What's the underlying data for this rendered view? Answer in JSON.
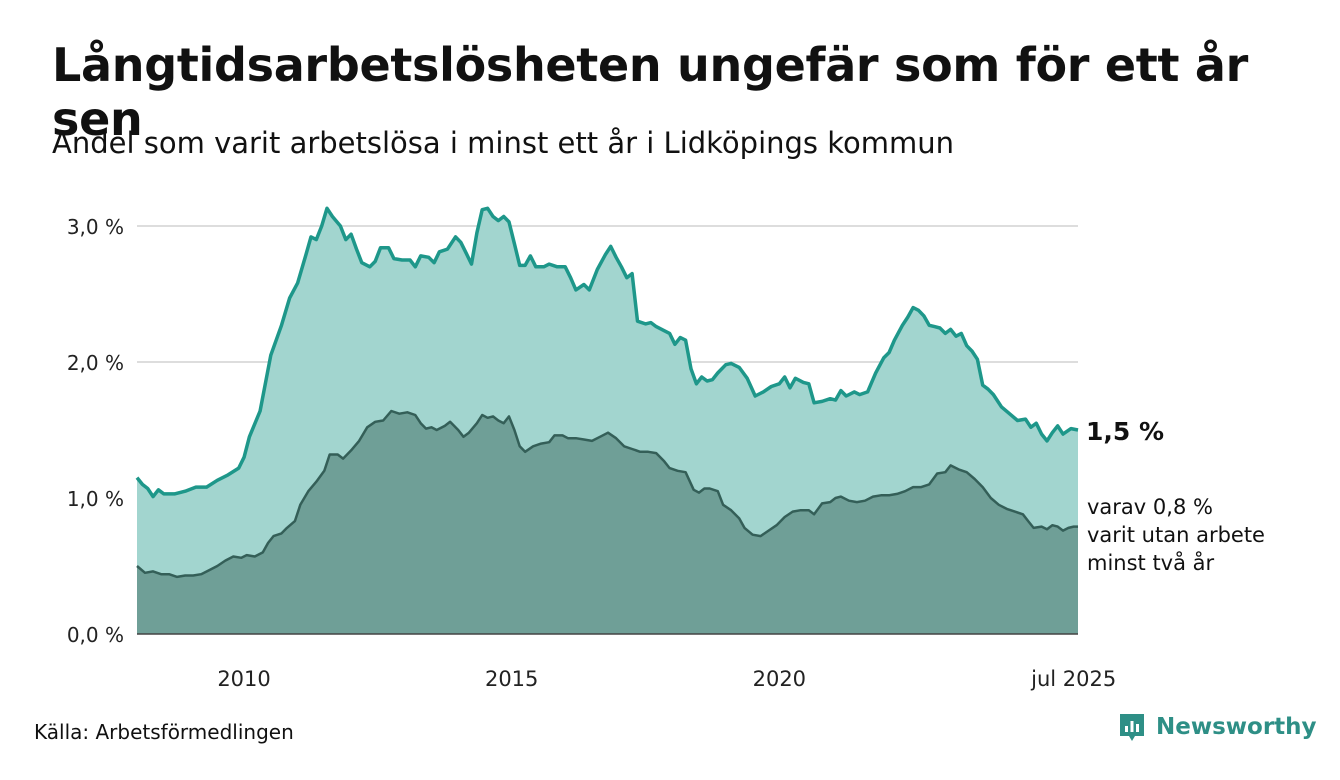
{
  "title": "Långtidsarbetslösheten ungefär som för ett år sen",
  "subtitle": "Andel som varit arbetslösa i minst ett år i Lidköpings kommun",
  "source": "Källa: Arbetsförmedlingen",
  "brand": {
    "name": "Newsworthy",
    "icon": "newsworthy-logo-icon"
  },
  "colors": {
    "total_fill": "#a2d5cf",
    "total_line": "#1e978a",
    "long_fill": "#6f9f97",
    "long_line": "#345f58",
    "grid": "#dddddd",
    "brand": "#2e8f86"
  },
  "end_labels": {
    "total": "1,5 %",
    "long_lines": [
      "varav 0,8 %",
      "varit utan arbete",
      "minst två år"
    ]
  },
  "chart_data": {
    "type": "area",
    "x_axis": {
      "range": [
        2008.0,
        2025.58
      ],
      "ticks": [
        2010,
        2015,
        2020,
        2025.5
      ],
      "tick_labels": [
        "2010",
        "2015",
        "2020",
        "jul 2025"
      ]
    },
    "y_axis": {
      "range": [
        0,
        3.0
      ],
      "ticks": [
        0,
        1,
        2,
        3
      ],
      "tick_labels": [
        "0,0 %",
        "1,0 %",
        "2,0 %",
        "3,0 %"
      ]
    },
    "grid": "horizontal",
    "series": [
      {
        "points": [
          [
            2008.0,
            1.15
          ],
          [
            2008.1,
            1.1
          ],
          [
            2008.2,
            1.07
          ],
          [
            2008.3,
            1.01
          ],
          [
            2008.4,
            1.06
          ],
          [
            2008.5,
            1.03
          ],
          [
            2008.7,
            1.03
          ],
          [
            2008.9,
            1.05
          ],
          [
            2009.1,
            1.08
          ],
          [
            2009.3,
            1.08
          ],
          [
            2009.5,
            1.13
          ],
          [
            2009.7,
            1.17
          ],
          [
            2009.9,
            1.22
          ],
          [
            2010.0,
            1.3
          ],
          [
            2010.1,
            1.45
          ],
          [
            2010.3,
            1.64
          ],
          [
            2010.5,
            2.05
          ],
          [
            2010.7,
            2.27
          ],
          [
            2010.85,
            2.47
          ],
          [
            2011.0,
            2.58
          ],
          [
            2011.15,
            2.78
          ],
          [
            2011.25,
            2.92
          ],
          [
            2011.35,
            2.9
          ],
          [
            2011.45,
            3.0
          ],
          [
            2011.55,
            3.13
          ],
          [
            2011.65,
            3.07
          ],
          [
            2011.8,
            3.0
          ],
          [
            2011.9,
            2.9
          ],
          [
            2012.0,
            2.94
          ],
          [
            2012.1,
            2.83
          ],
          [
            2012.2,
            2.73
          ],
          [
            2012.35,
            2.7
          ],
          [
            2012.45,
            2.74
          ],
          [
            2012.55,
            2.84
          ],
          [
            2012.7,
            2.84
          ],
          [
            2012.8,
            2.76
          ],
          [
            2012.95,
            2.75
          ],
          [
            2013.1,
            2.75
          ],
          [
            2013.2,
            2.7
          ],
          [
            2013.3,
            2.78
          ],
          [
            2013.45,
            2.77
          ],
          [
            2013.55,
            2.73
          ],
          [
            2013.65,
            2.81
          ],
          [
            2013.8,
            2.83
          ],
          [
            2013.95,
            2.92
          ],
          [
            2014.05,
            2.88
          ],
          [
            2014.15,
            2.8
          ],
          [
            2014.25,
            2.72
          ],
          [
            2014.35,
            2.95
          ],
          [
            2014.45,
            3.12
          ],
          [
            2014.55,
            3.13
          ],
          [
            2014.65,
            3.07
          ],
          [
            2014.75,
            3.04
          ],
          [
            2014.85,
            3.07
          ],
          [
            2014.95,
            3.03
          ],
          [
            2015.05,
            2.87
          ],
          [
            2015.15,
            2.71
          ],
          [
            2015.25,
            2.71
          ],
          [
            2015.35,
            2.78
          ],
          [
            2015.45,
            2.7
          ],
          [
            2015.6,
            2.7
          ],
          [
            2015.7,
            2.72
          ],
          [
            2015.85,
            2.7
          ],
          [
            2016.0,
            2.7
          ],
          [
            2016.1,
            2.62
          ],
          [
            2016.2,
            2.53
          ],
          [
            2016.35,
            2.57
          ],
          [
            2016.45,
            2.53
          ],
          [
            2016.6,
            2.68
          ],
          [
            2016.75,
            2.79
          ],
          [
            2016.85,
            2.85
          ],
          [
            2016.95,
            2.77
          ],
          [
            2017.05,
            2.7
          ],
          [
            2017.15,
            2.62
          ],
          [
            2017.25,
            2.65
          ],
          [
            2017.35,
            2.3
          ],
          [
            2017.5,
            2.28
          ],
          [
            2017.6,
            2.29
          ],
          [
            2017.7,
            2.26
          ],
          [
            2017.85,
            2.23
          ],
          [
            2017.95,
            2.21
          ],
          [
            2018.05,
            2.13
          ],
          [
            2018.15,
            2.18
          ],
          [
            2018.25,
            2.16
          ],
          [
            2018.35,
            1.95
          ],
          [
            2018.45,
            1.84
          ],
          [
            2018.55,
            1.89
          ],
          [
            2018.65,
            1.86
          ],
          [
            2018.75,
            1.87
          ],
          [
            2018.85,
            1.92
          ],
          [
            2019.0,
            1.98
          ],
          [
            2019.1,
            1.99
          ],
          [
            2019.25,
            1.96
          ],
          [
            2019.4,
            1.88
          ],
          [
            2019.55,
            1.75
          ],
          [
            2019.7,
            1.78
          ],
          [
            2019.85,
            1.82
          ],
          [
            2020.0,
            1.84
          ],
          [
            2020.1,
            1.89
          ],
          [
            2020.2,
            1.81
          ],
          [
            2020.3,
            1.88
          ],
          [
            2020.45,
            1.85
          ],
          [
            2020.55,
            1.84
          ],
          [
            2020.65,
            1.7
          ],
          [
            2020.8,
            1.71
          ],
          [
            2020.95,
            1.73
          ],
          [
            2021.05,
            1.72
          ],
          [
            2021.15,
            1.79
          ],
          [
            2021.25,
            1.75
          ],
          [
            2021.4,
            1.78
          ],
          [
            2021.5,
            1.76
          ],
          [
            2021.65,
            1.78
          ],
          [
            2021.8,
            1.92
          ],
          [
            2021.95,
            2.03
          ],
          [
            2022.05,
            2.07
          ],
          [
            2022.15,
            2.16
          ],
          [
            2022.3,
            2.27
          ],
          [
            2022.4,
            2.33
          ],
          [
            2022.5,
            2.4
          ],
          [
            2022.6,
            2.38
          ],
          [
            2022.7,
            2.34
          ],
          [
            2022.8,
            2.27
          ],
          [
            2022.9,
            2.26
          ],
          [
            2023.0,
            2.25
          ],
          [
            2023.1,
            2.21
          ],
          [
            2023.2,
            2.24
          ],
          [
            2023.3,
            2.19
          ],
          [
            2023.4,
            2.21
          ],
          [
            2023.5,
            2.12
          ],
          [
            2023.6,
            2.08
          ],
          [
            2023.7,
            2.02
          ],
          [
            2023.8,
            1.83
          ],
          [
            2023.9,
            1.8
          ],
          [
            2024.0,
            1.76
          ],
          [
            2024.15,
            1.67
          ],
          [
            2024.3,
            1.62
          ],
          [
            2024.45,
            1.57
          ],
          [
            2024.6,
            1.58
          ],
          [
            2024.7,
            1.52
          ],
          [
            2024.8,
            1.55
          ],
          [
            2024.9,
            1.47
          ],
          [
            2025.0,
            1.42
          ],
          [
            2025.1,
            1.48
          ],
          [
            2025.2,
            1.53
          ],
          [
            2025.3,
            1.47
          ],
          [
            2025.45,
            1.51
          ],
          [
            2025.58,
            1.5
          ]
        ]
      },
      {
        "points": [
          [
            2008.0,
            0.5
          ],
          [
            2008.15,
            0.45
          ],
          [
            2008.3,
            0.46
          ],
          [
            2008.45,
            0.44
          ],
          [
            2008.6,
            0.44
          ],
          [
            2008.75,
            0.42
          ],
          [
            2008.9,
            0.43
          ],
          [
            2009.05,
            0.43
          ],
          [
            2009.2,
            0.44
          ],
          [
            2009.35,
            0.47
          ],
          [
            2009.5,
            0.5
          ],
          [
            2009.65,
            0.54
          ],
          [
            2009.8,
            0.57
          ],
          [
            2009.95,
            0.56
          ],
          [
            2010.05,
            0.58
          ],
          [
            2010.2,
            0.57
          ],
          [
            2010.35,
            0.6
          ],
          [
            2010.45,
            0.67
          ],
          [
            2010.55,
            0.72
          ],
          [
            2010.7,
            0.74
          ],
          [
            2010.8,
            0.78
          ],
          [
            2010.95,
            0.83
          ],
          [
            2011.05,
            0.95
          ],
          [
            2011.2,
            1.05
          ],
          [
            2011.35,
            1.12
          ],
          [
            2011.5,
            1.2
          ],
          [
            2011.6,
            1.32
          ],
          [
            2011.75,
            1.32
          ],
          [
            2011.85,
            1.29
          ],
          [
            2012.0,
            1.35
          ],
          [
            2012.15,
            1.42
          ],
          [
            2012.3,
            1.52
          ],
          [
            2012.45,
            1.56
          ],
          [
            2012.6,
            1.57
          ],
          [
            2012.75,
            1.64
          ],
          [
            2012.9,
            1.62
          ],
          [
            2013.05,
            1.63
          ],
          [
            2013.2,
            1.61
          ],
          [
            2013.3,
            1.55
          ],
          [
            2013.4,
            1.51
          ],
          [
            2013.5,
            1.52
          ],
          [
            2013.6,
            1.5
          ],
          [
            2013.75,
            1.53
          ],
          [
            2013.85,
            1.56
          ],
          [
            2014.0,
            1.5
          ],
          [
            2014.1,
            1.45
          ],
          [
            2014.2,
            1.48
          ],
          [
            2014.35,
            1.55
          ],
          [
            2014.45,
            1.61
          ],
          [
            2014.55,
            1.59
          ],
          [
            2014.65,
            1.6
          ],
          [
            2014.75,
            1.57
          ],
          [
            2014.85,
            1.55
          ],
          [
            2014.95,
            1.6
          ],
          [
            2015.05,
            1.5
          ],
          [
            2015.15,
            1.38
          ],
          [
            2015.25,
            1.34
          ],
          [
            2015.4,
            1.38
          ],
          [
            2015.55,
            1.4
          ],
          [
            2015.7,
            1.41
          ],
          [
            2015.8,
            1.46
          ],
          [
            2015.95,
            1.46
          ],
          [
            2016.05,
            1.44
          ],
          [
            2016.2,
            1.44
          ],
          [
            2016.35,
            1.43
          ],
          [
            2016.5,
            1.42
          ],
          [
            2016.65,
            1.45
          ],
          [
            2016.8,
            1.48
          ],
          [
            2016.95,
            1.44
          ],
          [
            2017.1,
            1.38
          ],
          [
            2017.25,
            1.36
          ],
          [
            2017.4,
            1.34
          ],
          [
            2017.55,
            1.34
          ],
          [
            2017.7,
            1.33
          ],
          [
            2017.85,
            1.27
          ],
          [
            2017.95,
            1.22
          ],
          [
            2018.1,
            1.2
          ],
          [
            2018.25,
            1.19
          ],
          [
            2018.4,
            1.06
          ],
          [
            2018.5,
            1.04
          ],
          [
            2018.6,
            1.07
          ],
          [
            2018.7,
            1.07
          ],
          [
            2018.85,
            1.05
          ],
          [
            2018.95,
            0.95
          ],
          [
            2019.1,
            0.91
          ],
          [
            2019.25,
            0.85
          ],
          [
            2019.35,
            0.78
          ],
          [
            2019.5,
            0.73
          ],
          [
            2019.65,
            0.72
          ],
          [
            2019.8,
            0.76
          ],
          [
            2019.95,
            0.8
          ],
          [
            2020.1,
            0.86
          ],
          [
            2020.25,
            0.9
          ],
          [
            2020.4,
            0.91
          ],
          [
            2020.55,
            0.91
          ],
          [
            2020.65,
            0.88
          ],
          [
            2020.8,
            0.96
          ],
          [
            2020.95,
            0.97
          ],
          [
            2021.05,
            1.0
          ],
          [
            2021.15,
            1.01
          ],
          [
            2021.3,
            0.98
          ],
          [
            2021.45,
            0.97
          ],
          [
            2021.6,
            0.98
          ],
          [
            2021.75,
            1.01
          ],
          [
            2021.9,
            1.02
          ],
          [
            2022.05,
            1.02
          ],
          [
            2022.2,
            1.03
          ],
          [
            2022.35,
            1.05
          ],
          [
            2022.5,
            1.08
          ],
          [
            2022.65,
            1.08
          ],
          [
            2022.8,
            1.1
          ],
          [
            2022.95,
            1.18
          ],
          [
            2023.1,
            1.19
          ],
          [
            2023.2,
            1.24
          ],
          [
            2023.35,
            1.21
          ],
          [
            2023.5,
            1.19
          ],
          [
            2023.65,
            1.14
          ],
          [
            2023.8,
            1.08
          ],
          [
            2023.95,
            1.0
          ],
          [
            2024.1,
            0.95
          ],
          [
            2024.25,
            0.92
          ],
          [
            2024.4,
            0.9
          ],
          [
            2024.55,
            0.88
          ],
          [
            2024.65,
            0.83
          ],
          [
            2024.75,
            0.78
          ],
          [
            2024.9,
            0.79
          ],
          [
            2025.0,
            0.77
          ],
          [
            2025.1,
            0.8
          ],
          [
            2025.2,
            0.79
          ],
          [
            2025.3,
            0.76
          ],
          [
            2025.4,
            0.78
          ],
          [
            2025.5,
            0.79
          ],
          [
            2025.58,
            0.79
          ]
        ]
      }
    ]
  }
}
